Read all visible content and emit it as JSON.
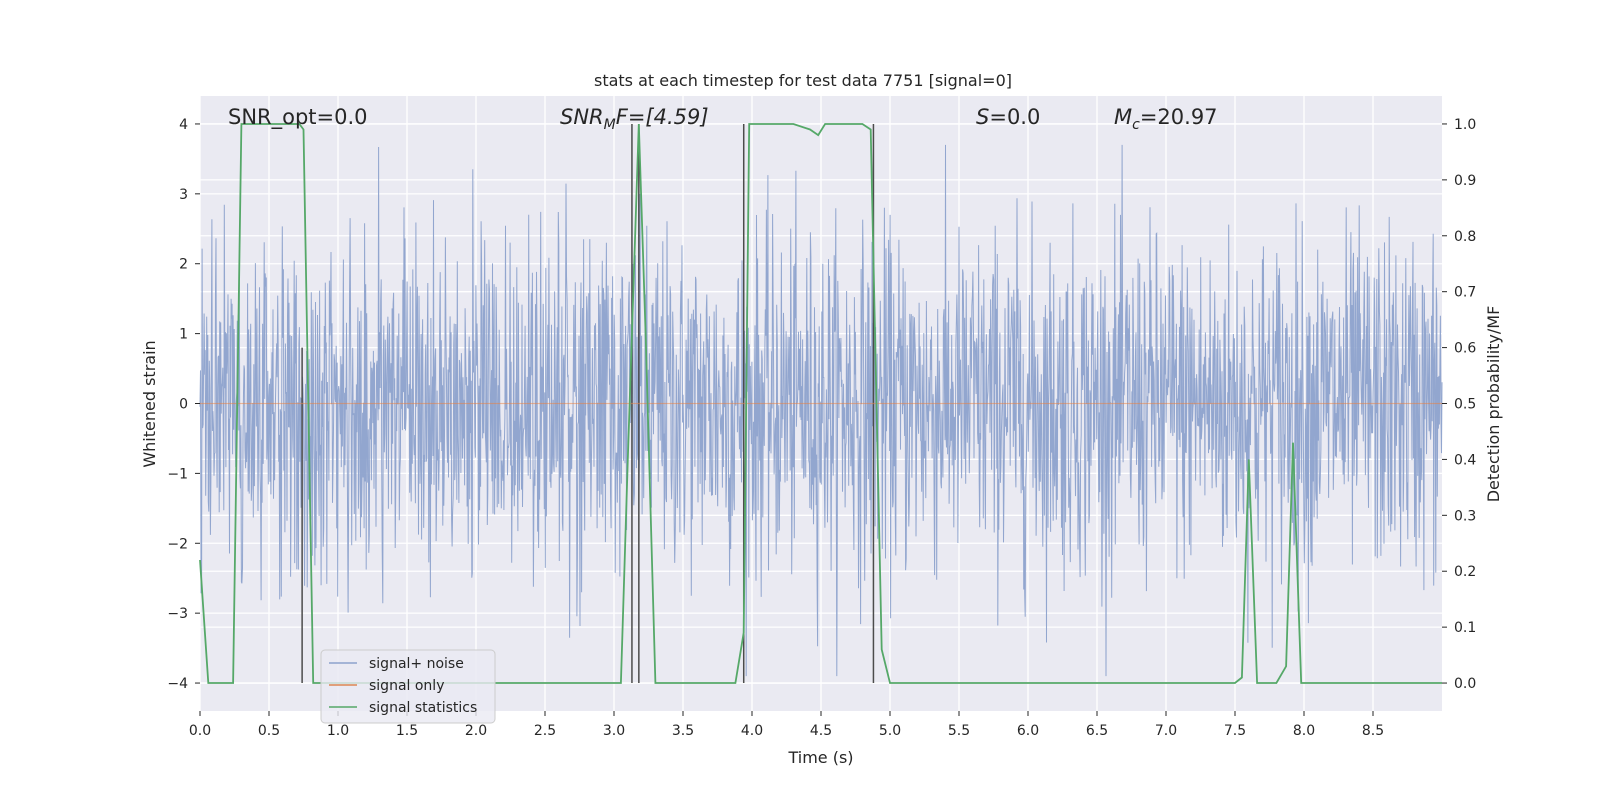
{
  "chart_data": {
    "type": "line",
    "title": "stats at each timestep for test data 7751 [signal=0]",
    "xlabel": "Time (s)",
    "ylabel": "Whitened strain",
    "y2label": "Detection probability/MF",
    "xlim": [
      0.0,
      9.0
    ],
    "ylim": [
      -4.4,
      4.4
    ],
    "y2lim": [
      -0.05,
      1.05
    ],
    "xticks": [
      "0.0",
      "0.5",
      "1.0",
      "1.5",
      "2.0",
      "2.5",
      "3.0",
      "3.5",
      "4.0",
      "4.5",
      "5.0",
      "5.5",
      "6.0",
      "6.5",
      "7.0",
      "7.5",
      "8.0",
      "8.5"
    ],
    "yticks": [
      "4",
      "3",
      "2",
      "1",
      "0",
      "−1",
      "−2",
      "−3",
      "−4"
    ],
    "y2ticks": [
      "1.0",
      "0.9",
      "0.8",
      "0.7",
      "0.6",
      "0.5",
      "0.4",
      "0.3",
      "0.2",
      "0.1",
      "0.0"
    ],
    "grid": true,
    "legend_position": "bottom-left",
    "annotations": {
      "snr_opt": "SNR_opt=0.0",
      "snr_mf_prefix": "SNR",
      "snr_mf_sub": "M",
      "snr_mf_suffix": "F=[4.59]",
      "s_sym": "S",
      "s_val": "=0.0",
      "mc_sym": "M",
      "mc_sub": "c",
      "mc_val": "=20.97"
    },
    "series": [
      {
        "name": "signal+ noise",
        "color": "#8da2cc",
        "description": "whitened strain noise, approx amplitude within ±4",
        "x_range": [
          0.0,
          9.0
        ],
        "y_range": [
          -3.9,
          3.7
        ]
      },
      {
        "name": "signal only",
        "color": "#dd8452",
        "x": [
          0.0,
          9.0
        ],
        "y": [
          0.0,
          0.0
        ]
      },
      {
        "name": "signal statistics",
        "color": "#55a868",
        "x": [
          0.0,
          0.06,
          0.24,
          0.3,
          0.72,
          0.75,
          0.82,
          3.05,
          3.1,
          3.18,
          3.23,
          3.3,
          3.88,
          3.94,
          3.98,
          4.3,
          4.42,
          4.48,
          4.53,
          4.8,
          4.86,
          4.94,
          5.0,
          7.5,
          7.55,
          7.6,
          7.66,
          7.72,
          7.8,
          7.87,
          7.92,
          7.98,
          8.0,
          9.0
        ],
        "y": [
          0.22,
          0.0,
          0.0,
          1.0,
          1.0,
          0.99,
          0.0,
          0.0,
          0.4,
          1.0,
          0.62,
          0.0,
          0.0,
          0.09,
          1.0,
          1.0,
          0.99,
          0.98,
          1.0,
          1.0,
          0.99,
          0.06,
          0.0,
          0.0,
          0.01,
          0.4,
          0.0,
          0.0,
          0.0,
          0.03,
          0.43,
          0.0,
          0.0,
          0.0
        ]
      },
      {
        "name": "markers",
        "color": "#4c4c4c",
        "x": [
          0.24,
          0.74,
          3.13,
          3.18,
          3.94,
          4.88
        ],
        "y_top": [
          0.0,
          0.6,
          1.0,
          1.0,
          1.0,
          1.0
        ]
      }
    ]
  }
}
